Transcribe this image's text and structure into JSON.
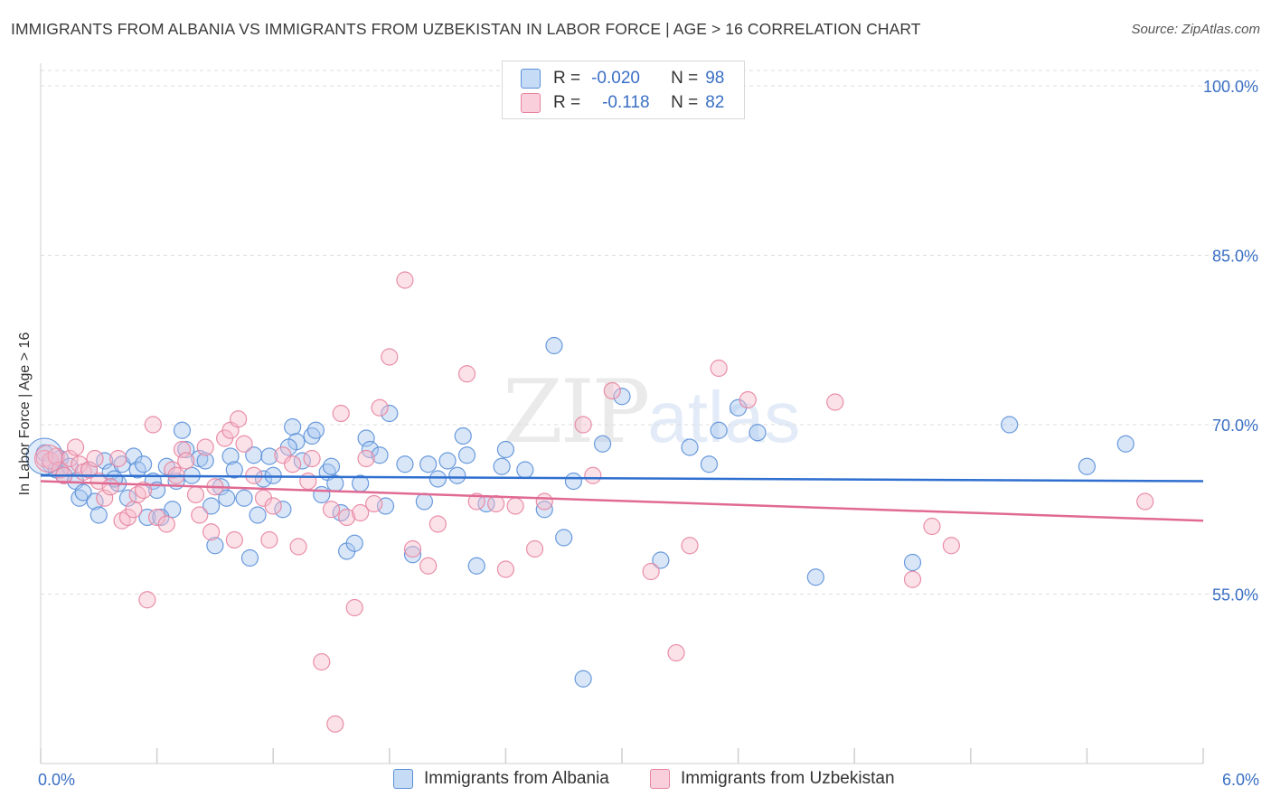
{
  "header": {
    "title": "IMMIGRANTS FROM ALBANIA VS IMMIGRANTS FROM UZBEKISTAN IN LABOR FORCE | AGE > 16 CORRELATION CHART",
    "source": "Source: ZipAtlas.com"
  },
  "legend": {
    "albania": {
      "r_label": "R =",
      "r_value": "-0.020",
      "n_label": "N =",
      "n_value": "98"
    },
    "uzbekistan": {
      "r_label": "R =",
      "r_value": "-0.118",
      "n_label": "N =",
      "n_value": "82"
    }
  },
  "watermark": {
    "zip": "ZIP",
    "atlas": "atlas"
  },
  "colors": {
    "albania_fill": "#a9c8f0",
    "albania_stroke": "#5a8fd8",
    "albania_line": "#2f6fcf",
    "uzbekistan_fill": "#f6bccd",
    "uzbekistan_stroke": "#e7839f",
    "uzbekistan_line": "#e06a93",
    "tick_label": "#3a6fc4",
    "grid": "#dcdcdc"
  },
  "chart_data": {
    "type": "scatter",
    "title": "IMMIGRANTS FROM ALBANIA VS IMMIGRANTS FROM UZBEKISTAN IN LABOR FORCE | AGE > 16 CORRELATION CHART",
    "xlabel": "",
    "ylabel": "In Labor Force | Age > 16",
    "xlim": [
      0,
      6
    ],
    "ylim": [
      40,
      102
    ],
    "x_tick_labels": [
      {
        "x": 0,
        "label": "0.0%"
      },
      {
        "x": 6,
        "label": "6.0%"
      }
    ],
    "y_ticks": [
      {
        "y": 100,
        "label": "100.0%"
      },
      {
        "y": 85,
        "label": "85.0%"
      },
      {
        "y": 70,
        "label": "70.0%"
      },
      {
        "y": 55,
        "label": "55.0%"
      }
    ],
    "x_minor_ticks": [
      0,
      0.6,
      1.2,
      1.8,
      2.4,
      3.0,
      3.6,
      4.2,
      4.8,
      5.4,
      6.0
    ],
    "legend_position": "bottom",
    "series": [
      {
        "name": "Immigrants from Albania",
        "color": "#5a8fd8",
        "trend": {
          "x": [
            0,
            6
          ],
          "y": [
            65.5,
            65.0
          ]
        },
        "points": [
          [
            0.02,
            67.5
          ],
          [
            0.05,
            66.5
          ],
          [
            0.08,
            66.0
          ],
          [
            0.1,
            67.0
          ],
          [
            0.12,
            65.5
          ],
          [
            0.15,
            66.3
          ],
          [
            0.18,
            65.0
          ],
          [
            0.2,
            63.5
          ],
          [
            0.22,
            64.0
          ],
          [
            0.25,
            66.0
          ],
          [
            0.28,
            63.2
          ],
          [
            0.3,
            62.0
          ],
          [
            0.33,
            66.8
          ],
          [
            0.36,
            65.8
          ],
          [
            0.4,
            64.8
          ],
          [
            0.42,
            66.5
          ],
          [
            0.45,
            63.5
          ],
          [
            0.48,
            67.2
          ],
          [
            0.5,
            66.0
          ],
          [
            0.53,
            66.5
          ],
          [
            0.55,
            61.8
          ],
          [
            0.58,
            65.0
          ],
          [
            0.6,
            64.2
          ],
          [
            0.65,
            66.3
          ],
          [
            0.68,
            62.5
          ],
          [
            0.7,
            65.0
          ],
          [
            0.73,
            69.5
          ],
          [
            0.75,
            67.8
          ],
          [
            0.78,
            65.5
          ],
          [
            0.82,
            67.0
          ],
          [
            0.85,
            66.8
          ],
          [
            0.88,
            62.8
          ],
          [
            0.9,
            59.3
          ],
          [
            0.93,
            64.5
          ],
          [
            0.96,
            63.5
          ],
          [
            0.98,
            67.2
          ],
          [
            1.0,
            66.0
          ],
          [
            1.08,
            58.2
          ],
          [
            1.1,
            67.3
          ],
          [
            1.12,
            62.0
          ],
          [
            1.15,
            65.2
          ],
          [
            1.18,
            67.2
          ],
          [
            1.2,
            65.5
          ],
          [
            1.25,
            62.5
          ],
          [
            1.3,
            69.8
          ],
          [
            1.32,
            68.5
          ],
          [
            1.35,
            66.8
          ],
          [
            1.4,
            69.0
          ],
          [
            1.42,
            69.5
          ],
          [
            1.45,
            63.8
          ],
          [
            1.48,
            65.8
          ],
          [
            1.5,
            66.3
          ],
          [
            1.52,
            64.8
          ],
          [
            1.55,
            62.2
          ],
          [
            1.58,
            58.8
          ],
          [
            1.62,
            59.5
          ],
          [
            1.65,
            64.8
          ],
          [
            1.68,
            68.8
          ],
          [
            1.7,
            67.8
          ],
          [
            1.75,
            67.3
          ],
          [
            1.78,
            62.8
          ],
          [
            1.8,
            71.0
          ],
          [
            1.88,
            66.5
          ],
          [
            1.92,
            58.5
          ],
          [
            1.98,
            63.2
          ],
          [
            2.0,
            66.5
          ],
          [
            2.05,
            65.2
          ],
          [
            2.1,
            66.8
          ],
          [
            2.15,
            65.5
          ],
          [
            2.2,
            67.3
          ],
          [
            2.25,
            57.5
          ],
          [
            2.3,
            63.0
          ],
          [
            2.4,
            67.8
          ],
          [
            2.5,
            66.0
          ],
          [
            2.6,
            62.5
          ],
          [
            2.65,
            77.0
          ],
          [
            2.7,
            60.0
          ],
          [
            2.75,
            65.0
          ],
          [
            2.8,
            47.5
          ],
          [
            2.9,
            68.3
          ],
          [
            3.0,
            72.5
          ],
          [
            3.2,
            58.0
          ],
          [
            3.35,
            68.0
          ],
          [
            3.45,
            66.5
          ],
          [
            3.5,
            69.5
          ],
          [
            3.6,
            71.5
          ],
          [
            3.7,
            69.3
          ],
          [
            4.0,
            56.5
          ],
          [
            4.5,
            57.8
          ],
          [
            5.0,
            70.0
          ],
          [
            5.4,
            66.3
          ],
          [
            5.6,
            68.3
          ],
          [
            1.28,
            68.0
          ],
          [
            0.62,
            61.8
          ],
          [
            2.18,
            69.0
          ],
          [
            1.05,
            63.5
          ],
          [
            0.38,
            65.2
          ],
          [
            2.38,
            66.3
          ]
        ]
      },
      {
        "name": "Immigrants from Uzbekistan",
        "color": "#e7839f",
        "trend": {
          "x": [
            0,
            6
          ],
          "y": [
            65.0,
            61.5
          ]
        },
        "points": [
          [
            0.02,
            67.0
          ],
          [
            0.05,
            66.8
          ],
          [
            0.08,
            67.2
          ],
          [
            0.1,
            66.0
          ],
          [
            0.12,
            65.5
          ],
          [
            0.15,
            67.0
          ],
          [
            0.18,
            68.0
          ],
          [
            0.2,
            66.5
          ],
          [
            0.22,
            65.8
          ],
          [
            0.25,
            66.0
          ],
          [
            0.28,
            67.0
          ],
          [
            0.3,
            65.0
          ],
          [
            0.33,
            63.5
          ],
          [
            0.36,
            64.5
          ],
          [
            0.4,
            67.0
          ],
          [
            0.42,
            61.5
          ],
          [
            0.45,
            61.8
          ],
          [
            0.48,
            62.5
          ],
          [
            0.5,
            63.8
          ],
          [
            0.53,
            64.2
          ],
          [
            0.55,
            54.5
          ],
          [
            0.58,
            70.0
          ],
          [
            0.6,
            61.8
          ],
          [
            0.65,
            61.2
          ],
          [
            0.68,
            66.0
          ],
          [
            0.7,
            65.5
          ],
          [
            0.73,
            67.8
          ],
          [
            0.75,
            66.8
          ],
          [
            0.8,
            63.8
          ],
          [
            0.82,
            62.0
          ],
          [
            0.85,
            68.0
          ],
          [
            0.88,
            60.5
          ],
          [
            0.9,
            64.5
          ],
          [
            0.95,
            68.8
          ],
          [
            0.98,
            69.5
          ],
          [
            1.0,
            59.8
          ],
          [
            1.02,
            70.5
          ],
          [
            1.05,
            68.3
          ],
          [
            1.1,
            65.5
          ],
          [
            1.15,
            63.5
          ],
          [
            1.18,
            59.8
          ],
          [
            1.2,
            62.8
          ],
          [
            1.25,
            67.3
          ],
          [
            1.3,
            66.5
          ],
          [
            1.33,
            59.2
          ],
          [
            1.38,
            65.0
          ],
          [
            1.4,
            67.0
          ],
          [
            1.45,
            49.0
          ],
          [
            1.5,
            62.5
          ],
          [
            1.52,
            43.5
          ],
          [
            1.55,
            71.0
          ],
          [
            1.58,
            61.8
          ],
          [
            1.62,
            53.8
          ],
          [
            1.65,
            62.2
          ],
          [
            1.68,
            67.0
          ],
          [
            1.72,
            63.0
          ],
          [
            1.75,
            71.5
          ],
          [
            1.8,
            76.0
          ],
          [
            1.88,
            82.8
          ],
          [
            1.92,
            59.0
          ],
          [
            2.0,
            57.5
          ],
          [
            2.05,
            61.2
          ],
          [
            2.2,
            74.5
          ],
          [
            2.25,
            63.2
          ],
          [
            2.35,
            63.0
          ],
          [
            2.4,
            57.2
          ],
          [
            2.45,
            62.8
          ],
          [
            2.55,
            59.0
          ],
          [
            2.6,
            63.2
          ],
          [
            2.8,
            70.0
          ],
          [
            2.85,
            65.5
          ],
          [
            2.95,
            73.0
          ],
          [
            3.15,
            57.0
          ],
          [
            3.28,
            49.8
          ],
          [
            3.35,
            59.3
          ],
          [
            3.5,
            75.0
          ],
          [
            3.65,
            72.2
          ],
          [
            4.1,
            72.0
          ],
          [
            4.5,
            56.3
          ],
          [
            4.6,
            61.0
          ],
          [
            4.7,
            59.3
          ],
          [
            5.7,
            63.2
          ]
        ]
      }
    ]
  },
  "bottom_legend": {
    "albania_label": "Immigrants from Albania",
    "uzbekistan_label": "Immigrants from Uzbekistan"
  }
}
